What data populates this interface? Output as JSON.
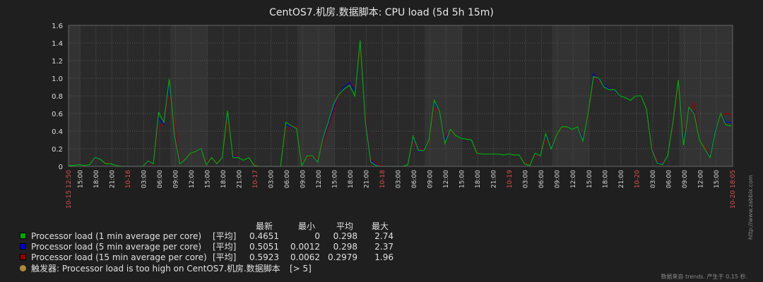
{
  "chart_data": {
    "type": "line",
    "title": "CentOS7.机房.数据脚本: CPU load (5d 5h 15m)",
    "ylim": [
      0,
      1.6
    ],
    "y_ticks": [
      "0",
      "0.2",
      "0.4",
      "0.6",
      "0.8",
      "1.0",
      "1.2",
      "1.4",
      "1.6"
    ],
    "x_range_hours": [
      0,
      125.25
    ],
    "x_ticks": [
      {
        "h": 0,
        "label": "10-15 12:50",
        "red": true
      },
      {
        "h": 2.17,
        "label": "15:00"
      },
      {
        "h": 5.17,
        "label": "18:00"
      },
      {
        "h": 8.17,
        "label": "21:00"
      },
      {
        "h": 11.17,
        "label": "10-16",
        "red": true
      },
      {
        "h": 14.17,
        "label": "03:00"
      },
      {
        "h": 17.17,
        "label": "06:00"
      },
      {
        "h": 20.17,
        "label": "09:00"
      },
      {
        "h": 23.17,
        "label": "12:00"
      },
      {
        "h": 26.17,
        "label": "15:00"
      },
      {
        "h": 29.17,
        "label": "18:00"
      },
      {
        "h": 32.17,
        "label": "21:00"
      },
      {
        "h": 35.17,
        "label": "10-17",
        "red": true
      },
      {
        "h": 38.17,
        "label": "03:00"
      },
      {
        "h": 41.17,
        "label": "06:00"
      },
      {
        "h": 44.17,
        "label": "09:00"
      },
      {
        "h": 47.17,
        "label": "12:00"
      },
      {
        "h": 50.17,
        "label": "15:00"
      },
      {
        "h": 53.17,
        "label": "18:00"
      },
      {
        "h": 56.17,
        "label": "21:00"
      },
      {
        "h": 59.17,
        "label": "10-18",
        "red": true
      },
      {
        "h": 62.17,
        "label": "03:00"
      },
      {
        "h": 65.17,
        "label": "06:00"
      },
      {
        "h": 68.17,
        "label": "09:00"
      },
      {
        "h": 71.17,
        "label": "12:00"
      },
      {
        "h": 74.17,
        "label": "15:00"
      },
      {
        "h": 77.17,
        "label": "18:00"
      },
      {
        "h": 80.17,
        "label": "21:00"
      },
      {
        "h": 83.17,
        "label": "10-19",
        "red": true
      },
      {
        "h": 86.17,
        "label": "03:00"
      },
      {
        "h": 89.17,
        "label": "06:00"
      },
      {
        "h": 92.17,
        "label": "09:00"
      },
      {
        "h": 95.17,
        "label": "12:00"
      },
      {
        "h": 98.17,
        "label": "15:00"
      },
      {
        "h": 101.17,
        "label": "18:00"
      },
      {
        "h": 104.17,
        "label": "21:00"
      },
      {
        "h": 107.17,
        "label": "10-20",
        "red": true
      },
      {
        "h": 110.17,
        "label": "03:00"
      },
      {
        "h": 113.17,
        "label": "06:00"
      },
      {
        "h": 116.17,
        "label": "09:00"
      },
      {
        "h": 119.17,
        "label": "12:00"
      },
      {
        "h": 122.17,
        "label": "15:00"
      },
      {
        "h": 125.25,
        "label": "10-20 18:05",
        "red": true
      }
    ],
    "x_hours": [
      0,
      1,
      2,
      3,
      4,
      5,
      6,
      7,
      8,
      9,
      10,
      11,
      12,
      13,
      14,
      15,
      16,
      17,
      18,
      19,
      20,
      21,
      22,
      23,
      24,
      25,
      26,
      27,
      28,
      29,
      30,
      31,
      32,
      33,
      34,
      35,
      36,
      37,
      38,
      39,
      40,
      41,
      42,
      43,
      44,
      45,
      46,
      47,
      48,
      49,
      50,
      51,
      52,
      53,
      54,
      55,
      56,
      57,
      58,
      59,
      60,
      61,
      62,
      63,
      64,
      65,
      66,
      67,
      68,
      69,
      70,
      71,
      72,
      73,
      74,
      75,
      76,
      77,
      78,
      79,
      80,
      81,
      82,
      83,
      84,
      85,
      86,
      87,
      88,
      89,
      90,
      91,
      92,
      93,
      94,
      95,
      96,
      97,
      98,
      99,
      100,
      101,
      102,
      103,
      104,
      105,
      106,
      107,
      108,
      109,
      110,
      111,
      112,
      113,
      114,
      115,
      116,
      117,
      118,
      119,
      120,
      121,
      122,
      123,
      124,
      125
    ],
    "series": [
      {
        "name": "Processor load (1 min average per core)",
        "color": "#00aa00",
        "func": "[平均]",
        "last": "0.4651",
        "min": "0",
        "avg": "0.298",
        "max": "2.74",
        "values": [
          0.01,
          0.01,
          0.02,
          0.01,
          0.02,
          0.1,
          0.08,
          0.03,
          0.03,
          0.01,
          0,
          0,
          0,
          0,
          0,
          0.06,
          0.03,
          0.61,
          0.5,
          0.99,
          0.35,
          0.03,
          0.08,
          0.15,
          0.17,
          0.2,
          0.02,
          0.1,
          0.03,
          0.1,
          0.63,
          0.1,
          0.1,
          0.07,
          0.1,
          0.01,
          0,
          0,
          0,
          0,
          0,
          0.5,
          0.46,
          0.43,
          0.01,
          0.12,
          0.12,
          0.05,
          0.32,
          0.5,
          0.7,
          0.82,
          0.88,
          0.92,
          0.8,
          1.43,
          0.5,
          0.05,
          0.01,
          0,
          0,
          0,
          0,
          0,
          0.02,
          0.34,
          0.18,
          0.18,
          0.3,
          0.75,
          0.62,
          0.26,
          0.42,
          0.35,
          0.32,
          0.31,
          0.3,
          0.15,
          0.14,
          0.14,
          0.14,
          0.14,
          0.13,
          0.14,
          0.13,
          0.13,
          0.03,
          0.01,
          0.15,
          0.12,
          0.37,
          0.2,
          0.35,
          0.45,
          0.45,
          0.42,
          0.45,
          0.29,
          0.6,
          1.02,
          1.0,
          0.9,
          0.87,
          0.87,
          0.8,
          0.78,
          0.75,
          0.8,
          0.8,
          0.65,
          0.2,
          0.04,
          0.02,
          0.12,
          0.5,
          0.98,
          0.24,
          0.67,
          0.6,
          0.3,
          0.2,
          0.1,
          0.4,
          0.6,
          0.47,
          0.46
        ]
      },
      {
        "name": "Processor load (5 min average per core)",
        "color": "#0000cc",
        "func": "[平均]",
        "last": "0.5051",
        "min": "0.0012",
        "avg": "0.298",
        "max": "2.37",
        "values": [
          0.01,
          0.01,
          0.02,
          0.01,
          0.02,
          0.09,
          0.08,
          0.03,
          0.03,
          0.01,
          0,
          0,
          0,
          0,
          0,
          0.05,
          0.03,
          0.55,
          0.48,
          0.93,
          0.38,
          0.04,
          0.08,
          0.15,
          0.17,
          0.19,
          0.03,
          0.1,
          0.03,
          0.1,
          0.6,
          0.12,
          0.1,
          0.07,
          0.1,
          0.01,
          0,
          0,
          0,
          0,
          0,
          0.48,
          0.45,
          0.43,
          0.02,
          0.12,
          0.12,
          0.06,
          0.3,
          0.47,
          0.66,
          0.82,
          0.9,
          0.95,
          0.86,
          1.42,
          0.55,
          0.07,
          0.02,
          0,
          0,
          0,
          0,
          0,
          0.02,
          0.32,
          0.17,
          0.19,
          0.3,
          0.72,
          0.62,
          0.3,
          0.42,
          0.35,
          0.32,
          0.31,
          0.3,
          0.15,
          0.14,
          0.14,
          0.14,
          0.14,
          0.13,
          0.14,
          0.13,
          0.13,
          0.03,
          0.01,
          0.14,
          0.13,
          0.34,
          0.22,
          0.35,
          0.45,
          0.45,
          0.42,
          0.45,
          0.32,
          0.58,
          1.05,
          0.98,
          0.92,
          0.88,
          0.86,
          0.8,
          0.78,
          0.75,
          0.8,
          0.8,
          0.65,
          0.22,
          0.05,
          0.03,
          0.12,
          0.48,
          0.96,
          0.3,
          0.65,
          0.62,
          0.3,
          0.2,
          0.12,
          0.42,
          0.6,
          0.5,
          0.5
        ]
      },
      {
        "name": "Processor load (15 min average per core)",
        "color": "#990000",
        "func": "[平均]",
        "last": "0.5923",
        "min": "0.0062",
        "avg": "0.2979",
        "max": "1.96",
        "values": [
          0.01,
          0.01,
          0.02,
          0.01,
          0.02,
          0.08,
          0.08,
          0.04,
          0.03,
          0.01,
          0,
          0,
          0,
          0,
          0,
          0.04,
          0.03,
          0.45,
          0.48,
          0.8,
          0.5,
          0.06,
          0.08,
          0.14,
          0.17,
          0.18,
          0.05,
          0.1,
          0.04,
          0.1,
          0.52,
          0.15,
          0.1,
          0.07,
          0.1,
          0.02,
          0,
          0,
          0,
          0,
          0,
          0.42,
          0.45,
          0.45,
          0.05,
          0.1,
          0.12,
          0.08,
          0.26,
          0.42,
          0.6,
          0.8,
          0.9,
          0.95,
          0.9,
          1.32,
          0.62,
          0.1,
          0.03,
          0.01,
          0,
          0,
          0,
          0,
          0.02,
          0.28,
          0.18,
          0.2,
          0.28,
          0.66,
          0.62,
          0.34,
          0.4,
          0.35,
          0.32,
          0.31,
          0.3,
          0.16,
          0.14,
          0.14,
          0.14,
          0.14,
          0.13,
          0.14,
          0.13,
          0.13,
          0.04,
          0.02,
          0.12,
          0.13,
          0.3,
          0.24,
          0.34,
          0.44,
          0.45,
          0.42,
          0.45,
          0.34,
          0.55,
          1.02,
          0.96,
          0.92,
          0.88,
          0.86,
          0.8,
          0.78,
          0.75,
          0.8,
          0.8,
          0.66,
          0.25,
          0.07,
          0.04,
          0.12,
          0.44,
          0.9,
          0.38,
          0.62,
          0.72,
          0.3,
          0.22,
          0.14,
          0.4,
          0.58,
          0.6,
          0.59
        ]
      }
    ],
    "trigger": {
      "name": "触发器: Processor load is too high on CentOS7.机房.数据脚本",
      "condition": "[> 5]",
      "color": "#b08a3c"
    },
    "threshold": 5
  },
  "legend": {
    "headers": {
      "last": "最新",
      "min": "最小",
      "avg": "平均",
      "max": "最大"
    }
  },
  "footer_note": "数据来自 trends. 产生于 0.15 秒.",
  "side_label": "http://www.zabbix.com"
}
